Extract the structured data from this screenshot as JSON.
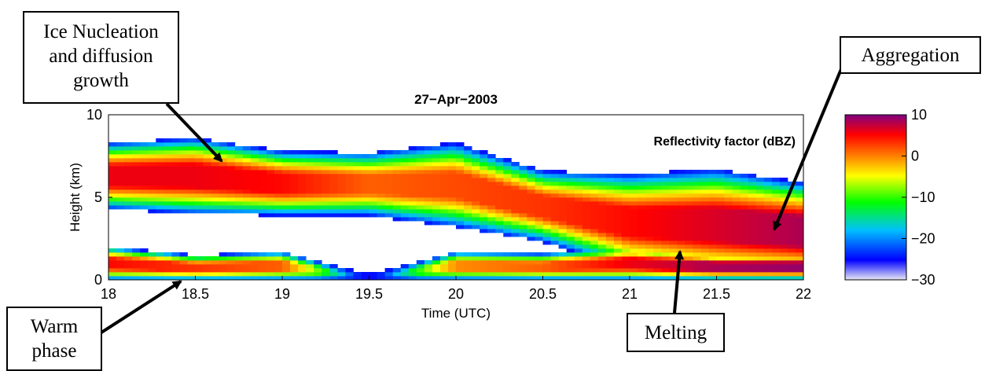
{
  "chart_data": {
    "type": "heatmap",
    "title": "27−Apr−2003",
    "xlabel": "Time (UTC)",
    "ylabel": "Height (km)",
    "colorbar_label": "Reflectivity factor (dBZ)",
    "xlim": [
      18,
      22
    ],
    "ylim": [
      0,
      10
    ],
    "clim": [
      -30,
      10
    ],
    "x_ticks": [
      "18",
      "18.5",
      "19",
      "19.5",
      "20",
      "20.5",
      "21",
      "21.5",
      "22"
    ],
    "y_ticks": [
      "0",
      "5",
      "10"
    ],
    "colorbar_ticks": [
      "10",
      "0",
      "−10",
      "−20",
      "−30"
    ],
    "colormap": [
      "#e8e8f4",
      "#0000ff",
      "#00c0ff",
      "#00ff00",
      "#ffff00",
      "#ff8000",
      "#ff0000",
      "#800080"
    ],
    "cloud_layers": [
      {
        "t": [
          18.0,
          18.5,
          19.0,
          19.5,
          20.0,
          20.5,
          21.0,
          21.5,
          22.0
        ],
        "base_km": [
          4.3,
          4.0,
          3.9,
          3.9,
          3.2,
          2.3,
          0.6,
          0.0,
          0.0
        ],
        "top_km": [
          8.3,
          8.6,
          7.8,
          7.7,
          8.3,
          6.6,
          6.4,
          6.7,
          5.9
        ],
        "peak_dbz": [
          5,
          5,
          4,
          0,
          1,
          2,
          4,
          6,
          8
        ]
      },
      {
        "t": [
          18.0,
          18.5,
          19.0,
          19.5,
          20.0,
          20.5,
          21.0,
          21.5,
          22.0
        ],
        "base_km": [
          0.0,
          0.0,
          0.0,
          0.0,
          0.0,
          0.0,
          0.0,
          0.0,
          0.0
        ],
        "top_km": [
          2.0,
          1.5,
          1.7,
          0.3,
          1.7,
          1.6,
          2.0,
          1.6,
          1.6
        ],
        "peak_dbz": [
          4,
          2,
          0,
          -25,
          -2,
          0,
          5,
          8,
          9
        ]
      }
    ]
  },
  "annotations": {
    "ice_nucleation": [
      "Ice Nucleation",
      "and diffusion",
      "growth"
    ],
    "aggregation": [
      "Aggregation"
    ],
    "warm_phase": [
      "Warm",
      "phase"
    ],
    "melting": [
      "Melting"
    ]
  }
}
